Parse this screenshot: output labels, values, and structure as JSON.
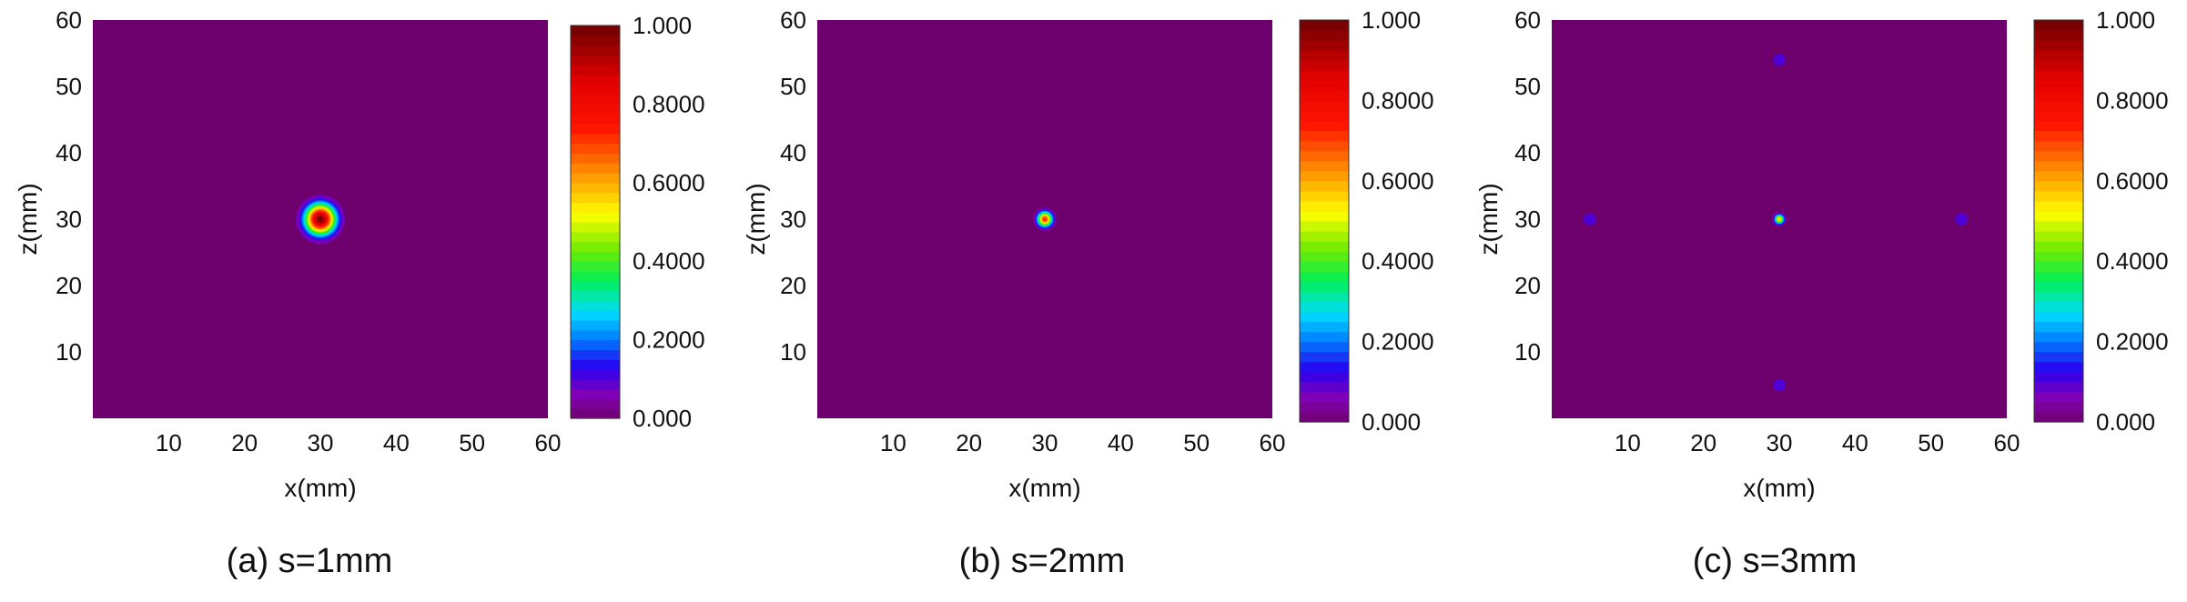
{
  "chart_data": [
    {
      "type": "heatmap",
      "caption": "(a) s=1mm",
      "xlabel": "x(mm)",
      "ylabel": "z(mm)",
      "xlim": [
        0,
        60
      ],
      "ylim": [
        0,
        60
      ],
      "x_ticks": [
        "10",
        "20",
        "30",
        "40",
        "50",
        "60"
      ],
      "y_ticks": [
        "10",
        "20",
        "30",
        "40",
        "50",
        "60"
      ],
      "colorbar": {
        "min": 0,
        "max": 1,
        "ticks": [
          "0.000",
          "0.2000",
          "0.4000",
          "0.6000",
          "0.8000",
          "1.000"
        ]
      },
      "background_value": 0,
      "hotspots": [
        {
          "x": 30,
          "z": 30,
          "peak": 1.0,
          "sigma_mm": 1.4
        }
      ]
    },
    {
      "type": "heatmap",
      "caption": "(b) s=2mm",
      "xlabel": "x(mm)",
      "ylabel": "z(mm)",
      "xlim": [
        0,
        60
      ],
      "ylim": [
        0,
        60
      ],
      "x_ticks": [
        "10",
        "20",
        "30",
        "40",
        "50",
        "60"
      ],
      "y_ticks": [
        "10",
        "20",
        "30",
        "40",
        "50",
        "60"
      ],
      "colorbar": {
        "min": 0,
        "max": 1,
        "ticks": [
          "0.000",
          "0.2000",
          "0.4000",
          "0.6000",
          "0.8000",
          "1.000"
        ]
      },
      "background_value": 0,
      "hotspots": [
        {
          "x": 30,
          "z": 30,
          "peak": 0.75,
          "sigma_mm": 0.7
        }
      ]
    },
    {
      "type": "heatmap",
      "caption": "(c) s=3mm",
      "xlabel": "x(mm)",
      "ylabel": "z(mm)",
      "xlim": [
        0,
        60
      ],
      "ylim": [
        0,
        60
      ],
      "x_ticks": [
        "10",
        "20",
        "30",
        "40",
        "50",
        "60"
      ],
      "y_ticks": [
        "10",
        "20",
        "30",
        "40",
        "50",
        "60"
      ],
      "colorbar": {
        "min": 0,
        "max": 1,
        "ticks": [
          "0.000",
          "0.2000",
          "0.4000",
          "0.6000",
          "0.8000",
          "1.000"
        ]
      },
      "background_value": 0,
      "hotspots": [
        {
          "x": 30,
          "z": 30,
          "peak": 0.6,
          "sigma_mm": 0.45
        },
        {
          "x": 30,
          "z": 54,
          "peak": 0.06,
          "sigma_mm": 0.5
        },
        {
          "x": 30,
          "z": 5,
          "peak": 0.06,
          "sigma_mm": 0.5
        },
        {
          "x": 5,
          "z": 30,
          "peak": 0.06,
          "sigma_mm": 0.5
        },
        {
          "x": 54,
          "z": 30,
          "peak": 0.06,
          "sigma_mm": 0.5
        }
      ]
    }
  ]
}
